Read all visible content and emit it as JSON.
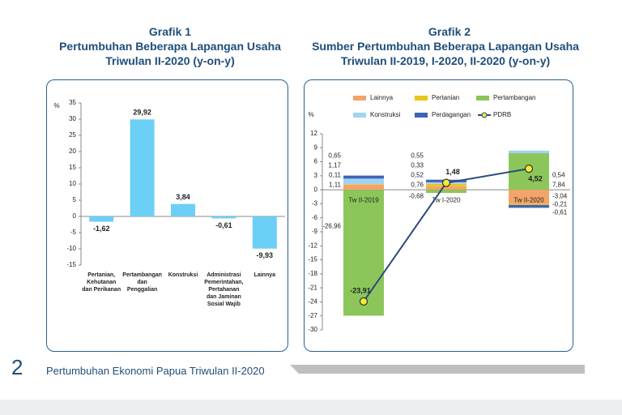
{
  "page": {
    "number": 2,
    "footer": "Pertumbuhan Ekonomi Papua Triwulan II-2020"
  },
  "chart_data": [
    {
      "type": "bar",
      "heading": "Grafik 1",
      "title": "Pertumbuhan Beberapa Lapangan Usaha Triwulan II-2020 (y-on-y)",
      "ylabel": "%",
      "categories": [
        "Pertanian, Kehutanan dan Perikanan",
        "Pertambangan dan Penggalian",
        "Konstruksi",
        "Administrasi Pemerintahan, Pertahanan dan Jaminan Sosial Wajib",
        "Lainnya"
      ],
      "values": [
        -1.62,
        29.92,
        3.84,
        -0.61,
        -9.93
      ],
      "value_labels": [
        "-1,62",
        "29,92",
        "3,84",
        "-0,61",
        "-9,93"
      ],
      "color": "#6ccff6",
      "ylim": [
        -15,
        35
      ],
      "yticks": [
        -15,
        -10,
        -5,
        0,
        5,
        10,
        15,
        20,
        25,
        30,
        35
      ]
    },
    {
      "type": "bar",
      "stacked": true,
      "heading": "Grafik 2",
      "title": "Sumber Pertumbuhan Beberapa Lapangan Usaha Triwulan II-2019, I-2020, II-2020 (y-on-y)",
      "ylabel": "%",
      "categories": [
        "Tw II-2019",
        "Tw I-2020",
        "Tw II-2020"
      ],
      "series": [
        {
          "name": "Lainnya",
          "color": "#f4a46a",
          "values": [
            1.11,
            0.76,
            -3.04
          ],
          "value_labels": [
            "1,11",
            "0,76",
            "-3,04"
          ]
        },
        {
          "name": "Pertanian",
          "color": "#e6c619",
          "values": [
            0.11,
            0.52,
            -0.21
          ],
          "value_labels": [
            "0,11",
            "0,52",
            "-0,21"
          ]
        },
        {
          "name": "Pertambangan",
          "color": "#8cc65a",
          "values": [
            -26.96,
            -0.68,
            7.84
          ],
          "value_labels": [
            "-26,96",
            "-0,68",
            "7,84"
          ]
        },
        {
          "name": "Konstruksi",
          "color": "#9fd3f2",
          "values": [
            1.17,
            0.33,
            0.54
          ],
          "value_labels": [
            "1,17",
            "0,33",
            "0,54"
          ]
        },
        {
          "name": "Perdagangan",
          "color": "#3f64b4",
          "values": [
            0.65,
            0.55,
            -0.61
          ],
          "value_labels": [
            "0,65",
            "0,55",
            "-0,61"
          ]
        },
        {
          "name": "PDRB",
          "type": "line",
          "color": "#2b4a7c",
          "marker_color": "#f2ea3a",
          "values": [
            -23.91,
            1.48,
            4.52
          ],
          "value_labels": [
            "-23,91",
            "1,48",
            "4,52"
          ]
        }
      ],
      "ylim": [
        -30,
        12
      ],
      "yticks": [
        -30,
        -27,
        -24,
        -21,
        -18,
        -15,
        -12,
        -9,
        -6,
        -3,
        0,
        3,
        6,
        9,
        12
      ]
    }
  ]
}
